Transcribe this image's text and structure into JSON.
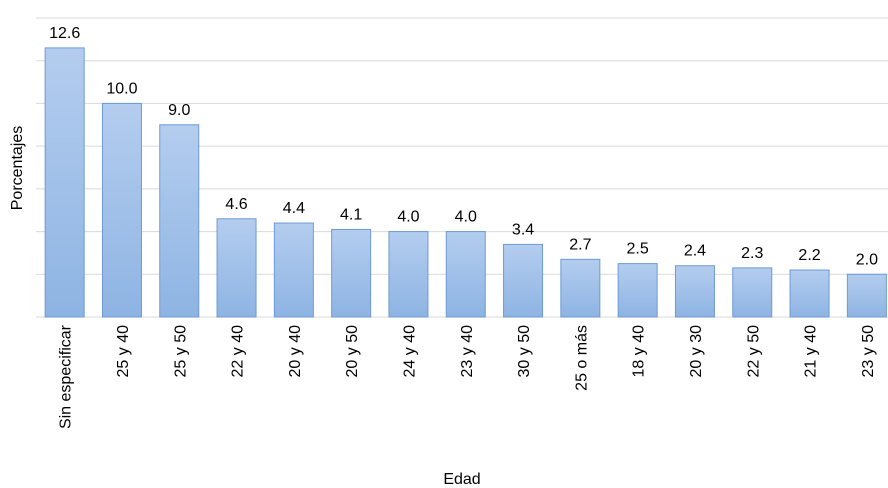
{
  "chart_data": {
    "type": "bar",
    "x_label": "Edad",
    "y_label": "Porcentajes",
    "categories": [
      "Sin especificar",
      "25 y 40",
      "25 y 50",
      "22 y 40",
      "20 y 40",
      "20 y 50",
      "24 y 40",
      "23 y 40",
      "30 y 50",
      "25 o más",
      "18 y 40",
      "20 y 30",
      "22 y 50",
      "21 y 40",
      "23 y 50"
    ],
    "values": [
      12.6,
      10.0,
      9.0,
      4.6,
      4.4,
      4.1,
      4.0,
      4.0,
      3.4,
      2.7,
      2.5,
      2.4,
      2.3,
      2.2,
      2.0
    ],
    "value_labels": [
      "12.6",
      "10.0",
      "9.0",
      "4.6",
      "4.4",
      "4.1",
      "4.0",
      "4.0",
      "3.4",
      "2.7",
      "2.5",
      "2.4",
      "2.3",
      "2.2",
      "2.0"
    ],
    "color": "#9dbde8",
    "ylim": [
      0,
      14
    ],
    "yticks": [
      0,
      2,
      4,
      6,
      8,
      10,
      12,
      14
    ],
    "grid": true
  }
}
